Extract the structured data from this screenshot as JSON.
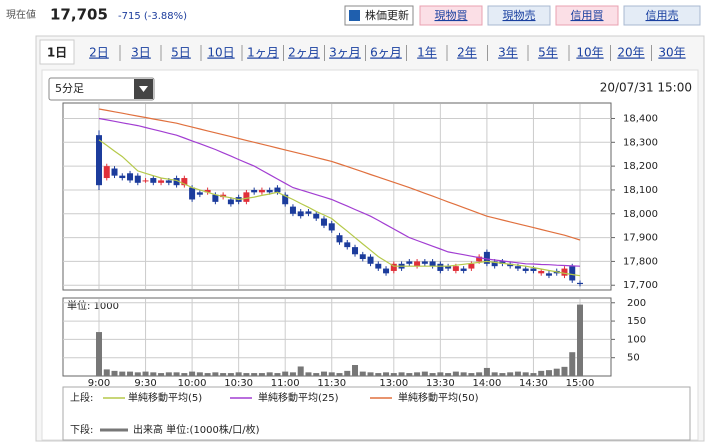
{
  "header": {
    "label": "現在値",
    "price": "17,705",
    "change": "-715 (-3.88%)",
    "buttons": [
      "株価更新",
      "現物買",
      "現物売",
      "信用買",
      "信用売"
    ]
  },
  "tabs": [
    "1日",
    "2日",
    "3日",
    "5日",
    "10日",
    "1ヶ月",
    "2ヶ月",
    "3ヶ月",
    "6ヶ月",
    "1年",
    "2年",
    "3年",
    "5年",
    "10年",
    "20年",
    "30年"
  ],
  "interval": "5分足",
  "timestamp": "20/07/31 15:00",
  "legend": {
    "upper_label": "上段:",
    "lower_label": "下段:"
  },
  "chart_data": [
    {
      "type": "candlestick",
      "categories": [
        "9:00",
        null,
        null,
        null,
        null,
        null,
        "9:30",
        null,
        null,
        null,
        null,
        null,
        "10:00",
        null,
        null,
        null,
        null,
        null,
        "10:30",
        null,
        null,
        null,
        null,
        null,
        "11:00",
        null,
        null,
        null,
        null,
        null,
        "11:30",
        null,
        null,
        null,
        null,
        null,
        null,
        null,
        "13:00",
        null,
        null,
        null,
        null,
        null,
        "13:30",
        null,
        null,
        null,
        null,
        null,
        "14:00",
        null,
        null,
        null,
        null,
        null,
        "14:30",
        null,
        null,
        null,
        null,
        null,
        "15:00"
      ],
      "open": [
        18330,
        18150,
        18190,
        18160,
        18170,
        18160,
        18140,
        18150,
        18130,
        18140,
        18150,
        18120,
        18110,
        18090,
        18090,
        18080,
        18070,
        18060,
        18070,
        18050,
        18100,
        18090,
        18100,
        18110,
        18080,
        18030,
        18010,
        18010,
        18000,
        17980,
        17960,
        17910,
        17880,
        17860,
        17830,
        17820,
        17790,
        17770,
        17760,
        17790,
        17800,
        17780,
        17800,
        17800,
        17790,
        17780,
        17760,
        17770,
        17770,
        17800,
        17840,
        17800,
        17800,
        17790,
        17780,
        17770,
        17770,
        17750,
        17750,
        17760,
        17740,
        17780,
        17710
      ],
      "high": [
        18350,
        18210,
        18200,
        18170,
        18180,
        18170,
        18150,
        18160,
        18150,
        18150,
        18160,
        18160,
        18120,
        18100,
        18110,
        18090,
        18090,
        18070,
        18080,
        18100,
        18110,
        18110,
        18110,
        18120,
        18090,
        18040,
        18020,
        18020,
        18010,
        17990,
        17970,
        17920,
        17890,
        17870,
        17840,
        17830,
        17800,
        17780,
        17800,
        17800,
        17810,
        17810,
        17810,
        17810,
        17800,
        17790,
        17790,
        17780,
        17800,
        17830,
        17850,
        17810,
        17810,
        17800,
        17790,
        17780,
        17780,
        17770,
        17760,
        17770,
        17780,
        17790,
        17720
      ],
      "low": [
        18100,
        18140,
        18150,
        18140,
        18130,
        18120,
        18130,
        18120,
        18120,
        18120,
        18110,
        18110,
        18050,
        18070,
        18080,
        18040,
        18060,
        18030,
        18040,
        18040,
        18080,
        18080,
        18080,
        18080,
        18030,
        17990,
        17980,
        17990,
        17970,
        17940,
        17920,
        17870,
        17850,
        17820,
        17800,
        17780,
        17760,
        17740,
        17750,
        17760,
        17780,
        17770,
        17780,
        17770,
        17750,
        17760,
        17750,
        17750,
        17760,
        17790,
        17780,
        17770,
        17780,
        17770,
        17760,
        17750,
        17750,
        17740,
        17730,
        17740,
        17730,
        17710,
        17695
      ],
      "close": [
        18120,
        18200,
        18160,
        18150,
        18140,
        18130,
        18140,
        18130,
        18140,
        18130,
        18120,
        18150,
        18060,
        18080,
        18100,
        18050,
        18080,
        18040,
        18050,
        18090,
        18090,
        18100,
        18090,
        18090,
        18040,
        18000,
        17990,
        18000,
        17980,
        17950,
        17930,
        17880,
        17860,
        17830,
        17810,
        17790,
        17770,
        17750,
        17790,
        17770,
        17790,
        17800,
        17790,
        17780,
        17760,
        17770,
        17780,
        17760,
        17790,
        17820,
        17790,
        17780,
        17790,
        17780,
        17770,
        17760,
        17760,
        17760,
        17740,
        17750,
        17770,
        17720,
        17705
      ],
      "up_color": "#e0303a",
      "down_color": "#1c3c9c",
      "series": [
        {
          "name": "単純移動平均(5)",
          "color": "#b5c94a",
          "values": [
            18310,
            18287,
            18263,
            18240,
            18210,
            18180,
            18170,
            18160,
            18150,
            18145,
            18140,
            18125,
            18110,
            18100,
            18090,
            18080,
            18073,
            18067,
            18060,
            18065,
            18070,
            18077,
            18083,
            18090,
            18075,
            18060,
            18043,
            18027,
            18010,
            17995,
            17980,
            17953,
            17927,
            17900,
            17873,
            17847,
            17820,
            17800,
            17780,
            17780,
            17780,
            17780,
            17780,
            17780,
            17780,
            17780,
            17784,
            17788,
            17792,
            17796,
            17800,
            17796,
            17792,
            17788,
            17784,
            17780,
            17774,
            17768,
            17762,
            17756,
            17750,
            17745,
            17740
          ]
        },
        {
          "name": "単純移動平均(25)",
          "color": "#a23ed2",
          "values": [
            18400,
            18394,
            18388,
            18382,
            18376,
            18370,
            18362,
            18354,
            18346,
            18338,
            18330,
            18318,
            18306,
            18294,
            18282,
            18270,
            18256,
            18242,
            18228,
            18214,
            18200,
            18182,
            18164,
            18146,
            18128,
            18110,
            18100,
            18090,
            18080,
            18070,
            18060,
            18046,
            18032,
            18018,
            18004,
            17990,
            17972,
            17954,
            17936,
            17918,
            17900,
            17888,
            17876,
            17864,
            17852,
            17840,
            17834,
            17828,
            17822,
            17816,
            17810,
            17806,
            17802,
            17798,
            17794,
            17790,
            17789,
            17787,
            17786,
            17784,
            17783,
            17781,
            17780
          ]
        },
        {
          "name": "単純移動平均(50)",
          "color": "#e0703e",
          "values": [
            18440,
            18434,
            18428,
            18422,
            18416,
            18410,
            18404,
            18398,
            18392,
            18386,
            18380,
            18372,
            18364,
            18356,
            18348,
            18340,
            18332,
            18324,
            18316,
            18308,
            18300,
            18292,
            18284,
            18276,
            18268,
            18260,
            18252,
            18244,
            18236,
            18228,
            18220,
            18209,
            18198,
            18187,
            18176,
            18165,
            18154,
            18143,
            18132,
            18121,
            18110,
            18098,
            18086,
            18074,
            18062,
            18050,
            18038,
            18026,
            18014,
            18002,
            17990,
            17982,
            17974,
            17966,
            17958,
            17950,
            17942,
            17934,
            17926,
            17918,
            17910,
            17900,
            17890
          ]
        }
      ],
      "ylim": [
        17680,
        18465
      ],
      "yticks": [
        {
          "value": 17700,
          "label": "17,700"
        },
        {
          "value": 17800,
          "label": "17,800"
        },
        {
          "value": 17900,
          "label": "17,900"
        },
        {
          "value": 18000,
          "label": "18,000"
        },
        {
          "value": 18100,
          "label": "18,100"
        },
        {
          "value": 18200,
          "label": "18,200"
        },
        {
          "value": 18300,
          "label": "18,300"
        },
        {
          "value": 18400,
          "label": "18,400"
        }
      ],
      "grid": true
    },
    {
      "type": "bar",
      "title": "単位: 1000",
      "series": [
        {
          "name": "出来高 単位:(1000株/口/枚)",
          "color": "#777777",
          "values": [
            120,
            18,
            14,
            12,
            12,
            10,
            12,
            10,
            8,
            10,
            10,
            8,
            12,
            10,
            8,
            10,
            8,
            8,
            10,
            8,
            8,
            8,
            10,
            8,
            12,
            10,
            26,
            10,
            8,
            12,
            10,
            8,
            14,
            30,
            12,
            10,
            8,
            10,
            8,
            10,
            8,
            10,
            12,
            8,
            10,
            8,
            12,
            10,
            8,
            10,
            22,
            10,
            8,
            10,
            12,
            10,
            8,
            14,
            16,
            20,
            25,
            65,
            195
          ]
        }
      ],
      "ylim": [
        0,
        213
      ],
      "yticks": [
        50,
        100,
        150,
        200
      ],
      "grid": true
    }
  ]
}
